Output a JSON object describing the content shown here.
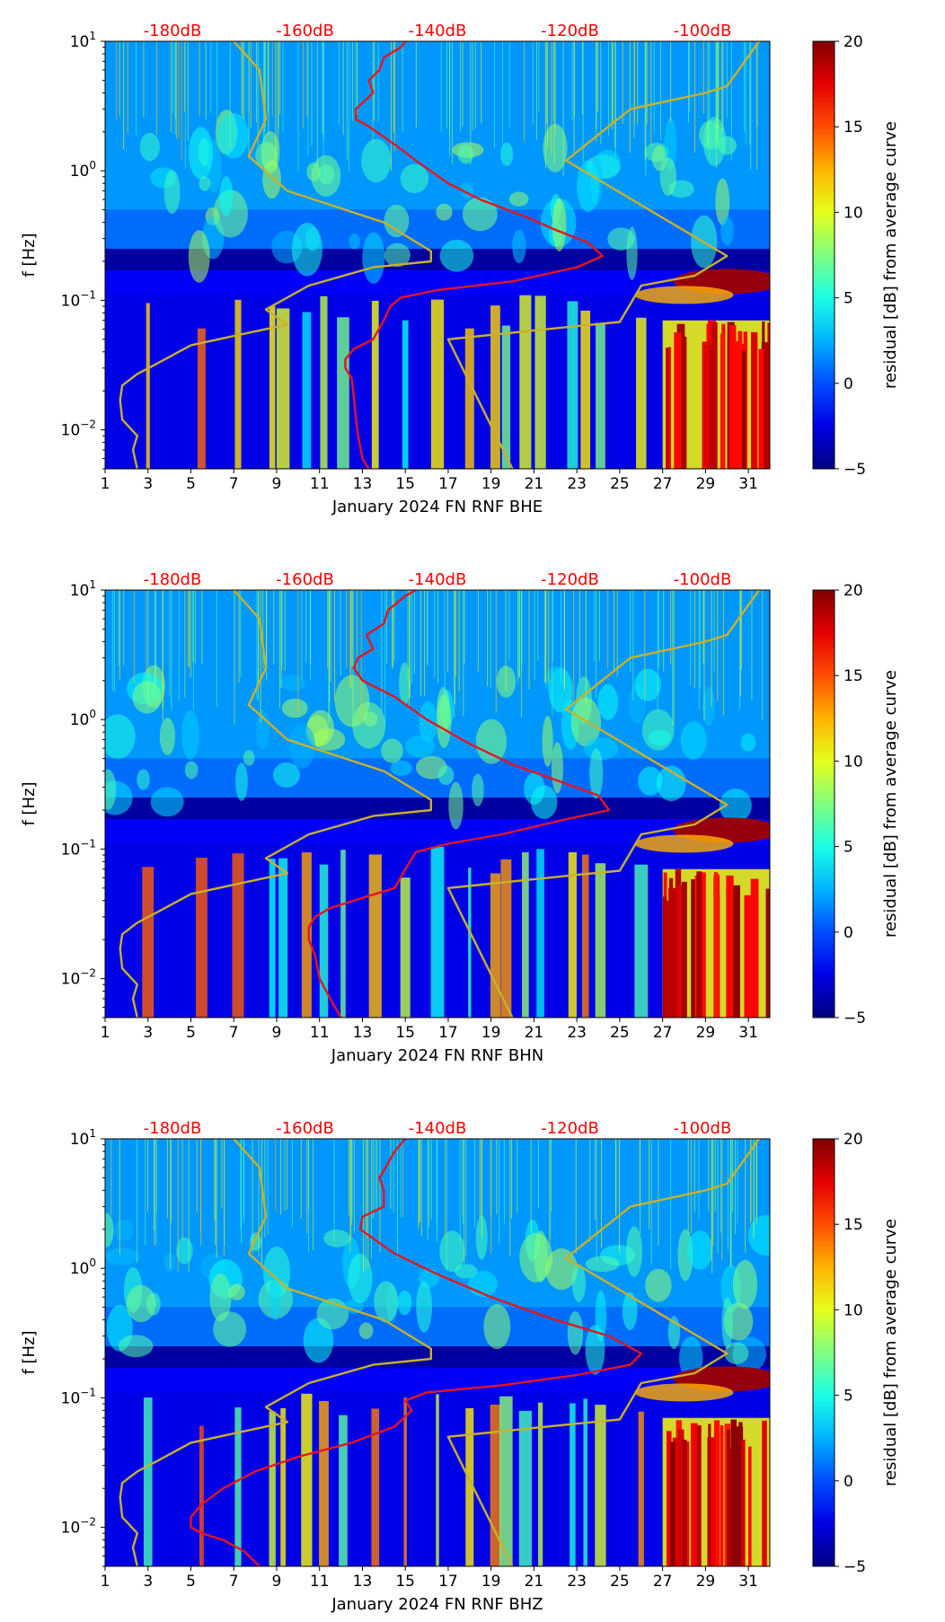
{
  "colors": {
    "axis": "#000000",
    "db_scale_text": "#ff0000",
    "red_curve": "#e8151d",
    "model_curve": "#c8b12a",
    "colormap": "jet"
  },
  "db_scale_labels": [
    "-180dB",
    "-160dB",
    "-140dB",
    "-120dB",
    "-100dB"
  ],
  "shared": {
    "ylabel": "f [Hz]",
    "colorbar_label": "residual [dB] from average curve",
    "colorbar_range": [
      -5,
      20
    ],
    "colorbar_ticks": [
      -5,
      0,
      5,
      10,
      15,
      20
    ],
    "colorbar_tick_labels": [
      "−5",
      "0",
      "5",
      "10",
      "15",
      "20"
    ],
    "ytick_labels": [
      {
        "exp": "1",
        "minus": false
      },
      {
        "exp": "0",
        "minus": false
      },
      {
        "exp": "1",
        "minus": true
      },
      {
        "exp": "2",
        "minus": true
      }
    ],
    "ytick_values": [
      10,
      1,
      0.1,
      0.01
    ],
    "ylim": [
      0.005,
      10
    ],
    "xlim": [
      1,
      32
    ],
    "xticks": [
      1,
      3,
      5,
      7,
      9,
      11,
      13,
      15,
      17,
      19,
      21,
      23,
      25,
      27,
      29,
      31
    ],
    "xtick_labels": [
      "1",
      "3",
      "5",
      "7",
      "9",
      "11",
      "13",
      "15",
      "17",
      "19",
      "21",
      "23",
      "25",
      "27",
      "29",
      "31"
    ]
  },
  "chart_data": [
    {
      "type": "heatmap",
      "title": "",
      "xlabel": "January 2024 FN RNF  BHE",
      "ylabel": "f [Hz]",
      "xlim": [
        1,
        32
      ],
      "ylim": [
        0.005,
        10
      ],
      "colorbar": {
        "label": "residual [dB] from average curve",
        "range": [
          -5,
          20
        ]
      },
      "series": [
        {
          "name": "red-curve",
          "points": [
            [
              13.3,
              0.005
            ],
            [
              13.0,
              0.006
            ],
            [
              12.8,
              0.009
            ],
            [
              12.7,
              0.012
            ],
            [
              12.6,
              0.018
            ],
            [
              12.5,
              0.025
            ],
            [
              12.2,
              0.03
            ],
            [
              12.2,
              0.035
            ],
            [
              12.6,
              0.042
            ],
            [
              13.5,
              0.05
            ],
            [
              14.0,
              0.07
            ],
            [
              14.3,
              0.09
            ],
            [
              14.8,
              0.105
            ],
            [
              16.5,
              0.12
            ],
            [
              20.0,
              0.14
            ],
            [
              23.0,
              0.18
            ],
            [
              24.2,
              0.22
            ],
            [
              23.5,
              0.28
            ],
            [
              22.0,
              0.35
            ],
            [
              20.5,
              0.45
            ],
            [
              18.5,
              0.6
            ],
            [
              17.0,
              0.8
            ],
            [
              15.5,
              1.2
            ],
            [
              14.5,
              1.6
            ],
            [
              13.3,
              2.2
            ],
            [
              12.7,
              2.5
            ],
            [
              12.7,
              3.0
            ],
            [
              13.5,
              4.0
            ],
            [
              13.3,
              5.0
            ],
            [
              13.8,
              6.0
            ],
            [
              14.0,
              7.5
            ],
            [
              14.8,
              9.0
            ],
            [
              15.0,
              10.0
            ]
          ]
        },
        {
          "name": "model-low-noise",
          "points": [
            [
              2.5,
              0.005
            ],
            [
              2.3,
              0.007
            ],
            [
              2.5,
              0.009
            ],
            [
              1.8,
              0.012
            ],
            [
              1.7,
              0.017
            ],
            [
              1.8,
              0.022
            ],
            [
              2.5,
              0.027
            ],
            [
              3.5,
              0.033
            ],
            [
              5.0,
              0.045
            ],
            [
              8.5,
              0.06
            ],
            [
              9.5,
              0.065
            ],
            [
              8.5,
              0.085
            ],
            [
              10.5,
              0.13
            ],
            [
              13.5,
              0.18
            ],
            [
              16.2,
              0.2
            ],
            [
              16.2,
              0.24
            ],
            [
              14.0,
              0.4
            ],
            [
              9.5,
              0.7
            ],
            [
              7.7,
              1.3
            ],
            [
              8.5,
              2.5
            ],
            [
              8.2,
              6.0
            ],
            [
              7.0,
              10.0
            ]
          ]
        },
        {
          "name": "model-high-noise",
          "points": [
            [
              20.0,
              0.005
            ],
            [
              17.0,
              0.05
            ],
            [
              22.5,
              0.062
            ],
            [
              25.0,
              0.068
            ],
            [
              26.0,
              0.13
            ],
            [
              28.5,
              0.155
            ],
            [
              30.0,
              0.22
            ],
            [
              22.5,
              1.2
            ],
            [
              25.5,
              3.0
            ],
            [
              29.0,
              4.0
            ],
            [
              30.0,
              4.5
            ],
            [
              31.5,
              10.0
            ]
          ]
        }
      ]
    },
    {
      "type": "heatmap",
      "title": "",
      "xlabel": "January 2024 FN RNF  BHN",
      "ylabel": "f [Hz]",
      "xlim": [
        1,
        32
      ],
      "ylim": [
        0.005,
        10
      ],
      "colorbar": {
        "label": "residual [dB] from average curve",
        "range": [
          -5,
          20
        ]
      },
      "series": [
        {
          "name": "red-curve",
          "points": [
            [
              12.0,
              0.005
            ],
            [
              11.5,
              0.007
            ],
            [
              11.0,
              0.01
            ],
            [
              10.8,
              0.015
            ],
            [
              10.5,
              0.02
            ],
            [
              10.5,
              0.025
            ],
            [
              10.8,
              0.03
            ],
            [
              11.5,
              0.035
            ],
            [
              13.0,
              0.042
            ],
            [
              14.5,
              0.05
            ],
            [
              15.0,
              0.07
            ],
            [
              15.5,
              0.095
            ],
            [
              17.0,
              0.11
            ],
            [
              19.5,
              0.13
            ],
            [
              22.5,
              0.17
            ],
            [
              24.5,
              0.2
            ],
            [
              24.0,
              0.26
            ],
            [
              22.5,
              0.32
            ],
            [
              20.0,
              0.45
            ],
            [
              18.0,
              0.65
            ],
            [
              16.0,
              1.0
            ],
            [
              14.5,
              1.5
            ],
            [
              13.0,
              2.0
            ],
            [
              12.6,
              2.5
            ],
            [
              12.8,
              3.0
            ],
            [
              13.5,
              3.5
            ],
            [
              13.2,
              4.5
            ],
            [
              14.0,
              5.5
            ],
            [
              14.2,
              7.0
            ],
            [
              15.0,
              9.0
            ],
            [
              15.5,
              10.0
            ]
          ]
        },
        {
          "name": "model-low-noise",
          "points": [
            [
              2.5,
              0.005
            ],
            [
              2.3,
              0.007
            ],
            [
              2.5,
              0.009
            ],
            [
              1.8,
              0.012
            ],
            [
              1.7,
              0.017
            ],
            [
              1.8,
              0.022
            ],
            [
              2.5,
              0.027
            ],
            [
              3.5,
              0.033
            ],
            [
              5.0,
              0.045
            ],
            [
              8.5,
              0.06
            ],
            [
              9.5,
              0.065
            ],
            [
              8.5,
              0.085
            ],
            [
              10.5,
              0.13
            ],
            [
              13.5,
              0.18
            ],
            [
              16.2,
              0.2
            ],
            [
              16.2,
              0.24
            ],
            [
              14.0,
              0.4
            ],
            [
              9.5,
              0.7
            ],
            [
              7.7,
              1.3
            ],
            [
              8.5,
              2.5
            ],
            [
              8.2,
              6.0
            ],
            [
              7.0,
              10.0
            ]
          ]
        },
        {
          "name": "model-high-noise",
          "points": [
            [
              20.0,
              0.005
            ],
            [
              17.0,
              0.05
            ],
            [
              22.5,
              0.062
            ],
            [
              25.0,
              0.068
            ],
            [
              26.0,
              0.13
            ],
            [
              28.5,
              0.155
            ],
            [
              30.0,
              0.22
            ],
            [
              22.5,
              1.2
            ],
            [
              25.5,
              3.0
            ],
            [
              29.0,
              4.0
            ],
            [
              30.0,
              4.5
            ],
            [
              31.5,
              10.0
            ]
          ]
        }
      ]
    },
    {
      "type": "heatmap",
      "title": "",
      "xlabel": "January 2024 FN RNF  BHZ",
      "ylabel": "f [Hz]",
      "xlim": [
        1,
        32
      ],
      "ylim": [
        0.005,
        10
      ],
      "colorbar": {
        "label": "residual [dB] from average curve",
        "range": [
          -5,
          20
        ]
      },
      "series": [
        {
          "name": "red-curve",
          "points": [
            [
              8.2,
              0.005
            ],
            [
              7.5,
              0.0065
            ],
            [
              6.5,
              0.008
            ],
            [
              5.5,
              0.009
            ],
            [
              5.0,
              0.01
            ],
            [
              5.0,
              0.012
            ],
            [
              5.5,
              0.015
            ],
            [
              6.5,
              0.02
            ],
            [
              8.0,
              0.027
            ],
            [
              10.0,
              0.035
            ],
            [
              12.5,
              0.045
            ],
            [
              14.5,
              0.06
            ],
            [
              15.3,
              0.08
            ],
            [
              15.0,
              0.095
            ],
            [
              16.0,
              0.11
            ],
            [
              19.5,
              0.125
            ],
            [
              23.0,
              0.15
            ],
            [
              25.5,
              0.18
            ],
            [
              26.0,
              0.22
            ],
            [
              24.5,
              0.3
            ],
            [
              22.0,
              0.4
            ],
            [
              19.0,
              0.6
            ],
            [
              16.5,
              0.9
            ],
            [
              14.5,
              1.3
            ],
            [
              12.9,
              2.0
            ],
            [
              13.0,
              2.5
            ],
            [
              14.0,
              3.0
            ],
            [
              14.0,
              4.0
            ],
            [
              13.8,
              5.0
            ],
            [
              14.2,
              6.5
            ],
            [
              14.5,
              8.0
            ],
            [
              15.0,
              10.0
            ]
          ]
        },
        {
          "name": "model-low-noise",
          "points": [
            [
              2.5,
              0.005
            ],
            [
              2.3,
              0.007
            ],
            [
              2.5,
              0.009
            ],
            [
              1.8,
              0.012
            ],
            [
              1.7,
              0.017
            ],
            [
              1.8,
              0.022
            ],
            [
              2.5,
              0.027
            ],
            [
              3.5,
              0.033
            ],
            [
              5.0,
              0.045
            ],
            [
              8.5,
              0.06
            ],
            [
              9.5,
              0.065
            ],
            [
              8.5,
              0.085
            ],
            [
              10.5,
              0.13
            ],
            [
              13.5,
              0.18
            ],
            [
              16.2,
              0.2
            ],
            [
              16.2,
              0.24
            ],
            [
              14.0,
              0.4
            ],
            [
              9.5,
              0.7
            ],
            [
              7.7,
              1.3
            ],
            [
              8.5,
              2.5
            ],
            [
              8.2,
              6.0
            ],
            [
              7.0,
              10.0
            ]
          ]
        },
        {
          "name": "model-high-noise",
          "points": [
            [
              20.0,
              0.005
            ],
            [
              17.0,
              0.05
            ],
            [
              22.5,
              0.062
            ],
            [
              25.0,
              0.068
            ],
            [
              26.0,
              0.13
            ],
            [
              28.5,
              0.155
            ],
            [
              30.0,
              0.22
            ],
            [
              22.5,
              1.2
            ],
            [
              25.5,
              3.0
            ],
            [
              29.0,
              4.0
            ],
            [
              30.0,
              4.5
            ],
            [
              31.5,
              10.0
            ]
          ]
        }
      ]
    }
  ]
}
